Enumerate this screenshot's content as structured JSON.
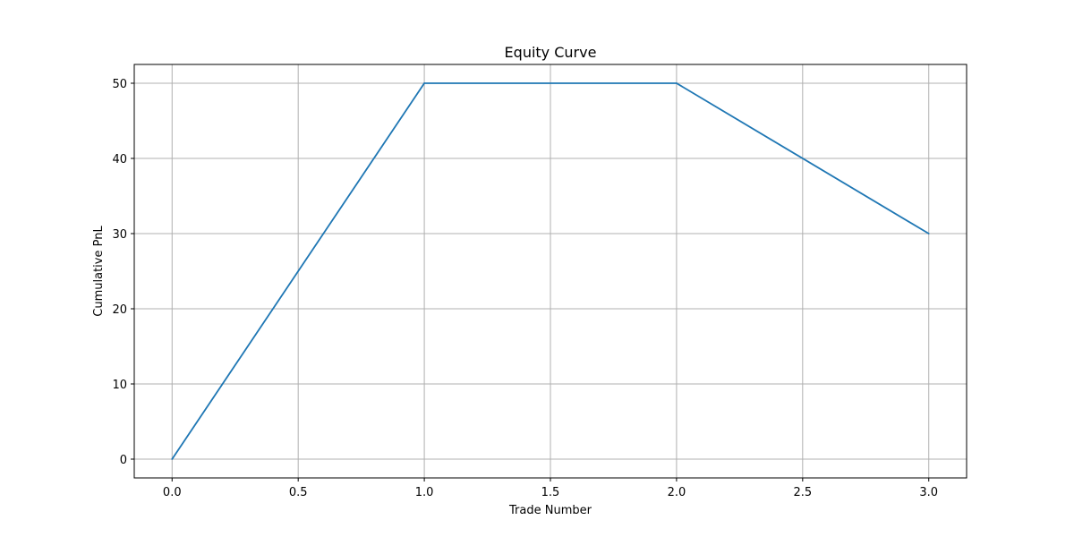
{
  "chart_data": {
    "type": "line",
    "title": "Equity Curve",
    "xlabel": "Trade Number",
    "ylabel": "Cumulative PnL",
    "xlim": [
      -0.15,
      3.15
    ],
    "ylim": [
      -2.5,
      52.5
    ],
    "xticks": [
      0.0,
      0.5,
      1.0,
      1.5,
      2.0,
      2.5,
      3.0
    ],
    "xtick_labels": [
      "0.0",
      "0.5",
      "1.0",
      "1.5",
      "2.0",
      "2.5",
      "3.0"
    ],
    "yticks": [
      0,
      10,
      20,
      30,
      40,
      50
    ],
    "ytick_labels": [
      "0",
      "10",
      "20",
      "30",
      "40",
      "50"
    ],
    "grid": true,
    "series": [
      {
        "x": [
          0,
          1,
          2,
          3
        ],
        "y": [
          0,
          50,
          50,
          30
        ],
        "color": "#1f77b4"
      }
    ],
    "colors": {
      "line": "#1f77b4",
      "grid": "#b0b0b0",
      "axes": "#000000"
    }
  }
}
